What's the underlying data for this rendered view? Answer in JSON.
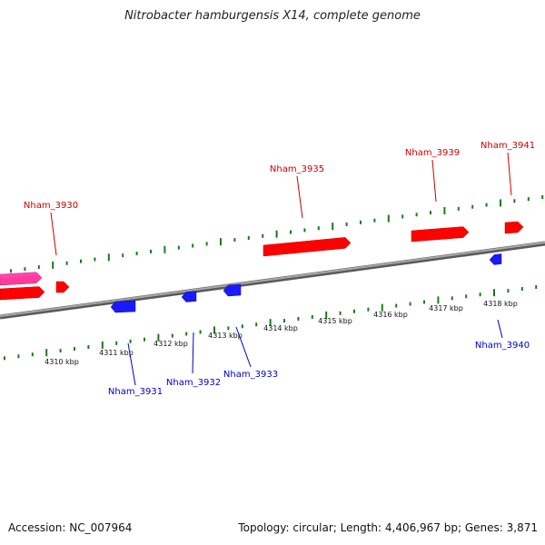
{
  "title": "Nitrobacter hamburgensis X14, complete genome",
  "footer": {
    "accession": "Accession: NC_007964",
    "summary": "Topology: circular; Length: 4,406,967 bp; Genes: 3,871"
  },
  "colors": {
    "forward_gene": "#ff0000",
    "forward_gene_highlight": "#ff3c9a",
    "reverse_gene": "#1a1aff",
    "backbone": "#8a8a8a",
    "tick": "#1a7a1a"
  },
  "scale_labels": [
    {
      "kbp": 4310,
      "label": "4310 kbp"
    },
    {
      "kbp": 4311,
      "label": "4311 kbp"
    },
    {
      "kbp": 4312,
      "label": "4312 kbp"
    },
    {
      "kbp": 4313,
      "label": "4313 kbp"
    },
    {
      "kbp": 4314,
      "label": "4314 kbp"
    },
    {
      "kbp": 4315,
      "label": "4315 kbp"
    },
    {
      "kbp": 4316,
      "label": "4316 kbp"
    },
    {
      "kbp": 4317,
      "label": "4317 kbp"
    },
    {
      "kbp": 4318,
      "label": "4318 kbp"
    }
  ],
  "genes_forward": [
    {
      "id": "g0",
      "label": "",
      "highlight": true
    },
    {
      "id": "g1",
      "label": "Nham_3930",
      "highlight": false
    },
    {
      "id": "g2",
      "label": "",
      "highlight": false
    },
    {
      "id": "g3",
      "label": "Nham_3935",
      "highlight": false
    },
    {
      "id": "g4",
      "label": "Nham_3939",
      "highlight": false
    },
    {
      "id": "g5",
      "label": "Nham_3941",
      "highlight": false
    }
  ],
  "genes_reverse": [
    {
      "id": "r1",
      "label": "Nham_3931"
    },
    {
      "id": "r2",
      "label": "Nham_3932"
    },
    {
      "id": "r3",
      "label": "Nham_3933"
    },
    {
      "id": "r4",
      "label": "Nham_3940"
    }
  ]
}
